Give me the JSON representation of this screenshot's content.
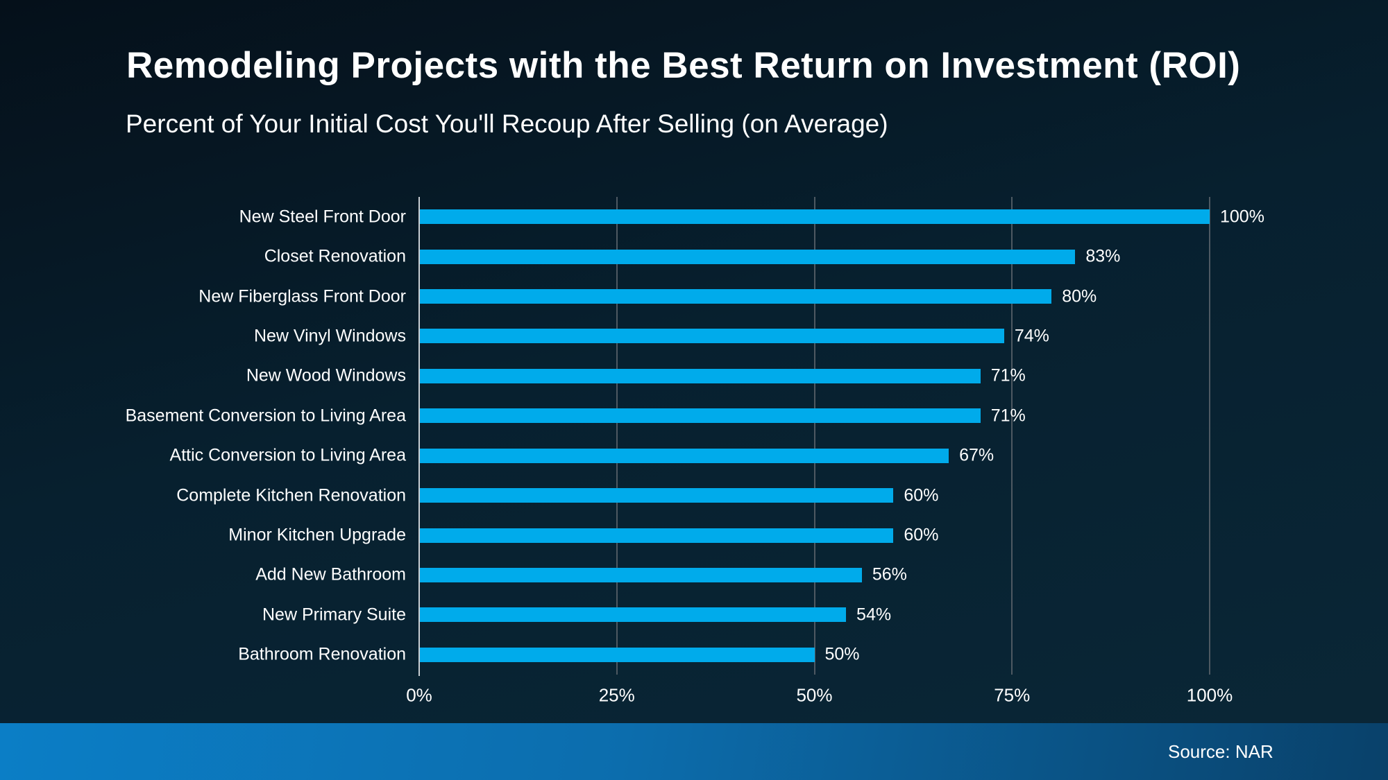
{
  "header": {
    "title": "Remodeling Projects with the Best Return on Investment (ROI)",
    "subtitle": "Percent of Your Initial Cost You'll Recoup After Selling (on Average)"
  },
  "footer": {
    "source": "Source: NAR"
  },
  "colors": {
    "bar": "#00abeb",
    "background_top": "#05101a",
    "background_bottom": "#0a2737",
    "gridline": "#4e5962",
    "axis_line": "#c9ced3",
    "footer_gradient_left": "#0b7ec6",
    "footer_gradient_right": "#09416a",
    "text": "#ffffff"
  },
  "chart_data": {
    "type": "bar",
    "orientation": "horizontal",
    "title": "Remodeling Projects with the Best Return on Investment (ROI)",
    "subtitle": "Percent of Your Initial Cost You'll Recoup After Selling (on Average)",
    "xlabel": "",
    "ylabel": "",
    "xlim": [
      0,
      100
    ],
    "grid": "vertical",
    "legend": false,
    "categories": [
      "New Steel Front Door",
      "Closet Renovation",
      "New Fiberglass Front Door",
      "New Vinyl Windows",
      "New Wood Windows",
      "Basement Conversion to Living Area",
      "Attic Conversion to Living Area",
      "Complete Kitchen Renovation",
      "Minor Kitchen Upgrade",
      "Add New Bathroom",
      "New Primary Suite",
      "Bathroom Renovation"
    ],
    "values": [
      100,
      83,
      80,
      74,
      71,
      71,
      67,
      60,
      60,
      56,
      54,
      50
    ],
    "value_labels": [
      "100%",
      "83%",
      "80%",
      "74%",
      "71%",
      "71%",
      "67%",
      "60%",
      "60%",
      "56%",
      "54%",
      "50%"
    ],
    "x_ticks": [
      {
        "label": "0%",
        "value": 0
      },
      {
        "label": "25%",
        "value": 25
      },
      {
        "label": "50%",
        "value": 50
      },
      {
        "label": "75%",
        "value": 75
      },
      {
        "label": "100%",
        "value": 100
      }
    ]
  }
}
